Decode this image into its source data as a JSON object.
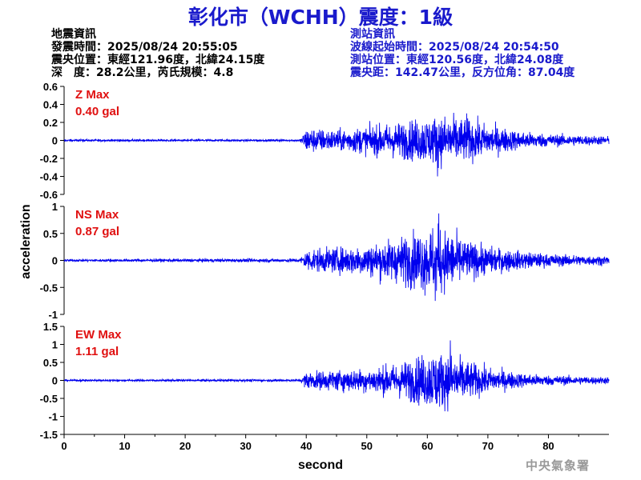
{
  "title": "彰化市（WCHH）震度：1級",
  "event_info": {
    "header": "地震資訊",
    "origin_time": "發震時間：2025/08/24 20:55:05",
    "epicenter": "震央位置：東經121.96度，北緯24.15度",
    "depth_magnitude": "深　度：28.2公里，芮氏規模：4.8"
  },
  "station_info": {
    "header": "測站資訊",
    "wave_start": "波線起始時間：2025/08/24 20:54:50",
    "location": "測站位置：東經120.56度，北緯24.08度",
    "distance_azimuth": "震央距：142.47公里，反方位角：87.04度"
  },
  "agency": "中央氣象署",
  "colors": {
    "trace": "#0000ee",
    "max_label": "#e01010",
    "title": "#1a1acc"
  },
  "chart_data": [
    {
      "type": "line",
      "component": "Z",
      "max_label": "Z Max",
      "max_value": "0.40 gal",
      "ylim": [
        -0.6,
        0.6
      ],
      "yticks": [
        0.6,
        0.4,
        0.2,
        0,
        -0.2,
        -0.4,
        -0.6
      ],
      "ytick_labels": [
        "0.6",
        "0.4",
        "0.2",
        "0",
        "-0.2",
        "-0.4",
        "-0.6"
      ],
      "envelope": [
        [
          0,
          0.01
        ],
        [
          39,
          0.01
        ],
        [
          40,
          0.12
        ],
        [
          45,
          0.1
        ],
        [
          50,
          0.13
        ],
        [
          55,
          0.17
        ],
        [
          60,
          0.22
        ],
        [
          63,
          0.24
        ],
        [
          67,
          0.2
        ],
        [
          70,
          0.15
        ],
        [
          75,
          0.09
        ],
        [
          80,
          0.06
        ],
        [
          90,
          0.04
        ]
      ],
      "peaks": [
        [
          61.7,
          -0.4
        ],
        [
          66.5,
          0.3
        ]
      ]
    },
    {
      "type": "line",
      "component": "NS",
      "max_label": "NS Max",
      "max_value": "0.87 gal",
      "ylim": [
        -1,
        1
      ],
      "yticks": [
        1,
        0.5,
        0,
        -0.5,
        -1
      ],
      "ytick_labels": [
        "1",
        "0.5",
        "0",
        "-0.5",
        "-1"
      ],
      "envelope": [
        [
          0,
          0.02
        ],
        [
          39,
          0.03
        ],
        [
          40,
          0.18
        ],
        [
          45,
          0.2
        ],
        [
          50,
          0.25
        ],
        [
          55,
          0.35
        ],
        [
          58,
          0.45
        ],
        [
          61,
          0.55
        ],
        [
          64,
          0.45
        ],
        [
          67,
          0.3
        ],
        [
          70,
          0.22
        ],
        [
          75,
          0.15
        ],
        [
          80,
          0.1
        ],
        [
          90,
          0.07
        ]
      ],
      "peaks": [
        [
          61.9,
          0.87
        ],
        [
          61.3,
          -0.75
        ]
      ]
    },
    {
      "type": "line",
      "component": "EW",
      "max_label": "EW Max",
      "max_value": "1.11 gal",
      "ylim": [
        -1.5,
        1.5
      ],
      "yticks": [
        1.5,
        1,
        0.5,
        0,
        -0.5,
        -1,
        -1.5
      ],
      "ytick_labels": [
        "1.5",
        "1",
        "0.5",
        "0",
        "-0.5",
        "-1",
        "-1.5"
      ],
      "envelope": [
        [
          0,
          0.02
        ],
        [
          39,
          0.03
        ],
        [
          40,
          0.2
        ],
        [
          45,
          0.25
        ],
        [
          50,
          0.28
        ],
        [
          55,
          0.4
        ],
        [
          58,
          0.55
        ],
        [
          61,
          0.7
        ],
        [
          64,
          0.62
        ],
        [
          67,
          0.45
        ],
        [
          70,
          0.3
        ],
        [
          75,
          0.18
        ],
        [
          80,
          0.12
        ],
        [
          90,
          0.08
        ]
      ],
      "peaks": [
        [
          63.8,
          1.11
        ],
        [
          61.5,
          -0.65
        ]
      ]
    }
  ],
  "x_axis": {
    "label": "second",
    "xlim": [
      0,
      90
    ],
    "ticks": [
      0,
      10,
      20,
      30,
      40,
      50,
      60,
      70,
      80
    ],
    "tick_labels": [
      "0",
      "10",
      "20",
      "30",
      "40",
      "50",
      "60",
      "70",
      "80"
    ]
  },
  "y_axis": {
    "label": "acceleration"
  }
}
